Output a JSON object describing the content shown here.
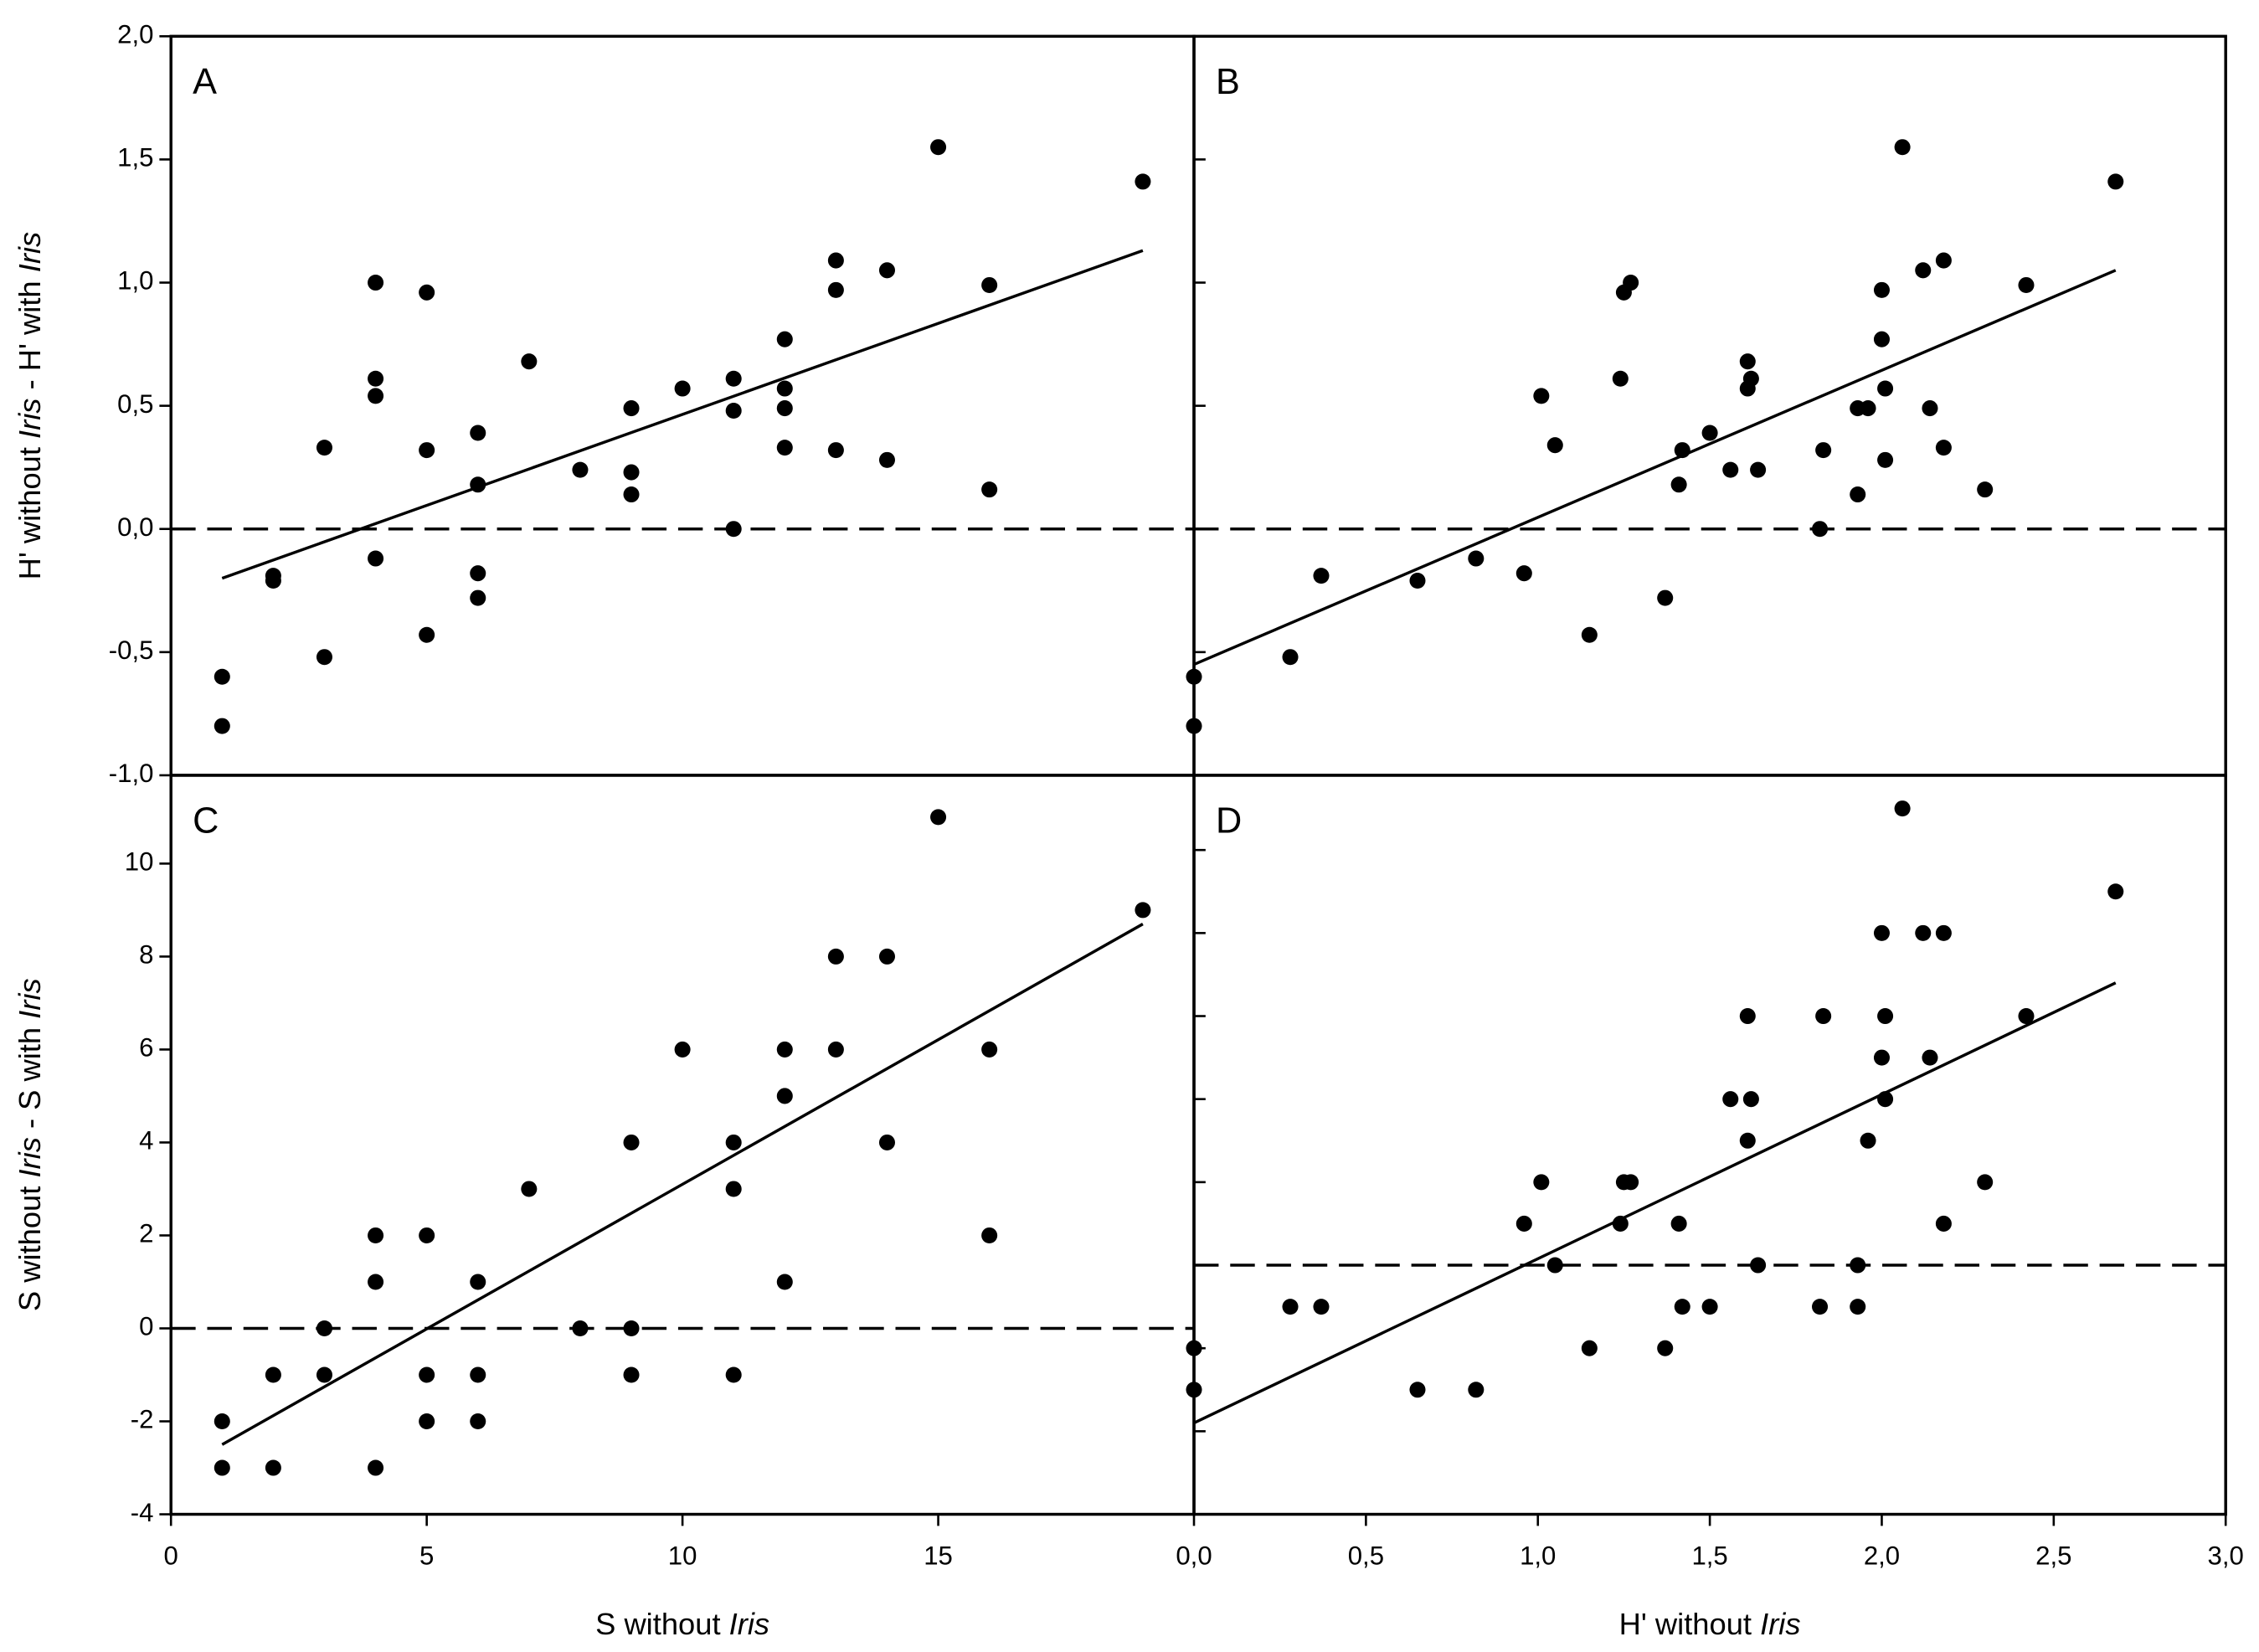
{
  "chart_data": [
    {
      "type": "scatter",
      "label": "A",
      "ylabel": [
        {
          "text": "H' without "
        },
        {
          "text": "Iris",
          "italic": true
        },
        {
          "text": " - H' with "
        },
        {
          "text": "Iris",
          "italic": true
        }
      ],
      "x": [
        1,
        1,
        2,
        2,
        3,
        3,
        4,
        4,
        4,
        4,
        5,
        5,
        5,
        6,
        6,
        6,
        6,
        7,
        8,
        9,
        9,
        9,
        10,
        11,
        11,
        11,
        12,
        12,
        12,
        12,
        13,
        13,
        13,
        14,
        14,
        15,
        16,
        16,
        19
      ],
      "y": [
        -0.6,
        -0.8,
        -0.19,
        -0.21,
        0.33,
        -0.52,
        1.0,
        0.61,
        0.54,
        -0.12,
        0.96,
        0.32,
        -0.43,
        0.39,
        0.18,
        -0.18,
        -0.28,
        0.68,
        0.24,
        0.49,
        0.23,
        0.14,
        0.57,
        0.61,
        0.48,
        0.0,
        0.77,
        0.57,
        0.49,
        0.33,
        1.09,
        0.97,
        0.32,
        1.05,
        0.28,
        1.55,
        0.99,
        0.16,
        1.41
      ],
      "fit": {
        "x": [
          1,
          19
        ],
        "y": [
          -0.2,
          1.13
        ]
      },
      "hline": 0,
      "xlim": [
        0,
        20
      ],
      "ylim": [
        -1,
        2
      ],
      "yticks": [
        {
          "value": -1,
          "label": "-1,0"
        },
        {
          "value": -0.5,
          "label": "-0,5"
        },
        {
          "value": 0,
          "label": "0,0"
        },
        {
          "value": 0.5,
          "label": "0,5"
        },
        {
          "value": 1,
          "label": "1,0"
        },
        {
          "value": 1.5,
          "label": "1,5"
        },
        {
          "value": 2,
          "label": "2,0"
        }
      ],
      "ytick_labels": true
    },
    {
      "type": "scatter",
      "label": "B",
      "x": [
        0,
        0,
        0.28,
        0.37,
        0.65,
        0.82,
        0.96,
        1.01,
        1.05,
        1.15,
        1.25,
        1.24,
        1.27,
        1.37,
        1.41,
        1.42,
        1.5,
        1.56,
        1.61,
        1.61,
        1.62,
        1.64,
        1.82,
        1.83,
        1.93,
        1.93,
        1.96,
        2.0,
        2.0,
        2.01,
        2.01,
        2.12,
        2.14,
        2.18,
        2.18,
        2.06,
        2.3,
        2.42,
        2.68
      ],
      "y": [
        -0.6,
        -0.8,
        -0.52,
        -0.19,
        -0.21,
        -0.12,
        -0.18,
        0.54,
        0.34,
        -0.43,
        0.96,
        0.61,
        1.0,
        -0.28,
        0.18,
        0.32,
        0.39,
        0.24,
        0.68,
        0.57,
        0.61,
        0.24,
        0.0,
        0.32,
        0.14,
        0.49,
        0.49,
        0.97,
        0.77,
        0.28,
        0.57,
        1.05,
        0.49,
        1.09,
        0.33,
        1.55,
        0.16,
        0.99,
        1.41
      ],
      "fit": {
        "x": [
          0,
          2.68
        ],
        "y": [
          -0.55,
          1.05
        ]
      },
      "hline": 0,
      "xlim": [
        0,
        3
      ],
      "ylim": [
        -1,
        2
      ],
      "yticks": [
        -0.5,
        0,
        0.5,
        1,
        1.5
      ],
      "ytick_labels": false
    },
    {
      "type": "scatter",
      "label": "C",
      "xlabel": [
        {
          "text": "S without "
        },
        {
          "text": "Iris",
          "italic": true
        }
      ],
      "ylabel": [
        {
          "text": "S without "
        },
        {
          "text": "Iris",
          "italic": true
        },
        {
          "text": " - S with "
        },
        {
          "text": "Iris",
          "italic": true
        }
      ],
      "x": [
        1,
        1,
        2,
        2,
        3,
        3,
        4,
        4,
        4,
        5,
        5,
        5,
        6,
        6,
        6,
        7,
        8,
        9,
        9,
        9,
        10,
        11,
        11,
        11,
        12,
        12,
        12,
        13,
        13,
        14,
        14,
        15,
        16,
        16,
        19
      ],
      "y": [
        -2,
        -3,
        -1,
        -3,
        0,
        -1,
        2,
        1,
        -3,
        2,
        -1,
        -2,
        1,
        -1,
        -2,
        3,
        0,
        4,
        0,
        -1,
        6,
        4,
        3,
        -1,
        6,
        5,
        1,
        8,
        6,
        8,
        4,
        11,
        6,
        2,
        9
      ],
      "fit": {
        "x": [
          1,
          19
        ],
        "y": [
          -2.5,
          8.7
        ]
      },
      "hline": 0,
      "xlim": [
        0,
        20
      ],
      "ylim": [
        -4,
        11.9
      ],
      "xticks": [
        0,
        5,
        10,
        15
      ],
      "yticks": [
        -4,
        -2,
        0,
        2,
        4,
        6,
        8,
        10
      ],
      "ytick_labels": true
    },
    {
      "type": "scatter",
      "label": "D",
      "xlabel": [
        {
          "text": "H' without "
        },
        {
          "text": "Iris",
          "italic": true
        }
      ],
      "x": [
        0,
        0,
        0.28,
        0.37,
        0.65,
        0.82,
        0.96,
        1.01,
        1.05,
        1.15,
        1.25,
        1.24,
        1.27,
        1.37,
        1.41,
        1.42,
        1.5,
        1.56,
        1.61,
        1.61,
        1.62,
        1.64,
        1.82,
        1.83,
        1.93,
        1.93,
        1.96,
        2.0,
        2.0,
        2.01,
        2.01,
        2.12,
        2.14,
        2.18,
        2.18,
        2.06,
        2.3,
        2.42,
        2.68
      ],
      "y": [
        -2,
        -3,
        -1,
        -1,
        -3,
        -3,
        1,
        2,
        0,
        -2,
        2,
        1,
        2,
        -2,
        1,
        -1,
        -1,
        4,
        6,
        3,
        4,
        0,
        -1,
        6,
        0,
        -1,
        3,
        8,
        5,
        4,
        6,
        8,
        5,
        8,
        1,
        11,
        2,
        6,
        9
      ],
      "fit": {
        "x": [
          0,
          2.68
        ],
        "y": [
          -3.8,
          6.8
        ]
      },
      "hline": 0,
      "xlim": [
        0,
        3
      ],
      "ylim": [
        -6,
        11.8
      ],
      "xticks": [
        {
          "value": 0,
          "label": "0,0"
        },
        {
          "value": 0.5,
          "label": "0,5"
        },
        {
          "value": 1,
          "label": "1,0"
        },
        {
          "value": 1.5,
          "label": "1,5"
        },
        {
          "value": 2,
          "label": "2,0"
        },
        {
          "value": 2.5,
          "label": "2,5"
        },
        {
          "value": 3,
          "label": "3,0"
        }
      ],
      "yticks": [
        -4,
        -2,
        0,
        2,
        4,
        6,
        8,
        10
      ],
      "ytick_labels": false
    }
  ]
}
